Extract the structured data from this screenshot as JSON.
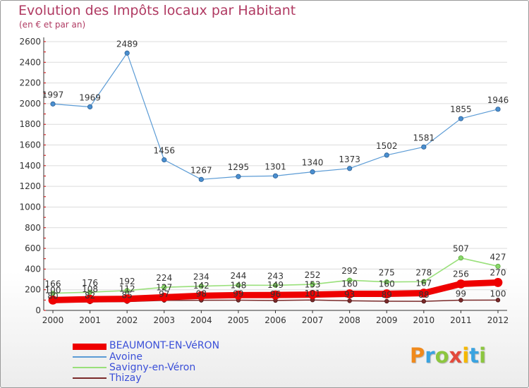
{
  "chart_data": {
    "type": "line",
    "title": "Evolution des Impôts locaux par Habitant",
    "subtitle": "(en € et par an)",
    "x": [
      "2000",
      "2001",
      "2002",
      "2003",
      "2004",
      "2005",
      "2006",
      "2007",
      "2008",
      "2009",
      "2010",
      "2011",
      "2012"
    ],
    "ylim": [
      0,
      2600
    ],
    "yticks": [
      0,
      200,
      400,
      600,
      800,
      1000,
      1200,
      1400,
      1600,
      1800,
      2000,
      2200,
      2400,
      2600
    ],
    "series": [
      {
        "name": "Avoine",
        "color": "#5b9bd5",
        "values": [
          1997,
          1969,
          2489,
          1456,
          1267,
          1295,
          1301,
          1340,
          1373,
          1502,
          1581,
          1855,
          1946
        ]
      },
      {
        "name": "Savigny-en-Véron",
        "color": "#99e07a",
        "values": [
          166,
          176,
          192,
          224,
          234,
          244,
          243,
          252,
          292,
          275,
          278,
          507,
          427
        ]
      },
      {
        "name": "Thizay",
        "color": "#7a2a2a",
        "values": [
          80,
          82,
          85,
          97,
          98,
          99,
          96,
          101,
          93,
          89,
          88,
          99,
          100
        ]
      },
      {
        "name": "BEAUMONT-EN-VéRON",
        "color": "#ee0000",
        "values": [
          100,
          108,
          112,
          127,
          142,
          148,
          149,
          153,
          160,
          160,
          167,
          256,
          270
        ]
      }
    ],
    "legend": [
      "BEAUMONT-EN-VéRON",
      "Avoine",
      "Savigny-en-Véron",
      "Thizay"
    ]
  },
  "logo": {
    "letters": [
      "P",
      "r",
      "o",
      "x",
      "i",
      "t",
      "i"
    ]
  }
}
